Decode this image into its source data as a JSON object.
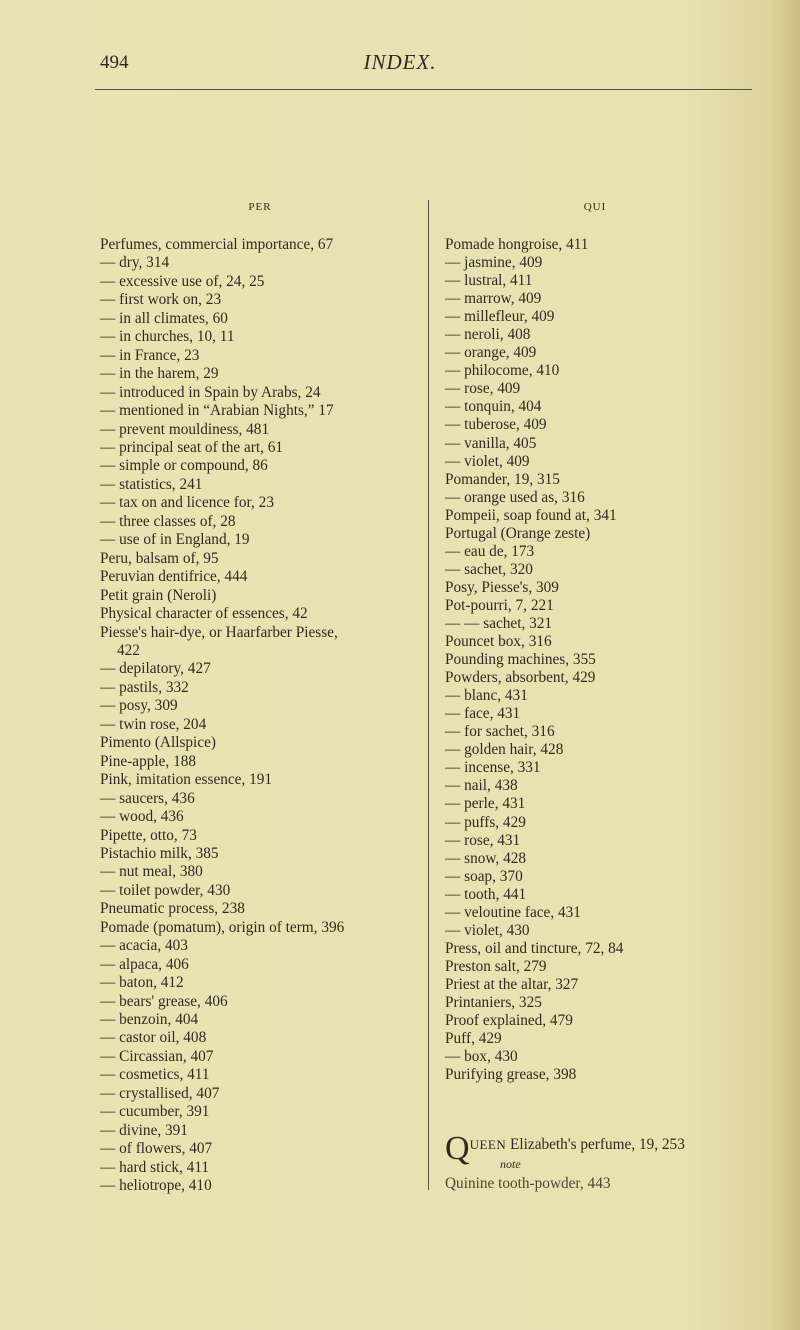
{
  "header": {
    "page_number": "494",
    "title": "INDEX."
  },
  "left_column": {
    "heading": "PER",
    "entries": [
      "Perfumes, commercial importance, 67",
      "— dry, 314",
      "— excessive use of, 24, 25",
      "— first work on, 23",
      "— in all climates, 60",
      "— in churches, 10, 11",
      "— in France, 23",
      "— in the harem, 29",
      "— introduced in Spain by Arabs, 24",
      "— mentioned in “Arabian Nights,” 17",
      "— prevent mouldiness, 481",
      "— principal seat of the art, 61",
      "— simple or compound, 86",
      "— statistics, 241",
      "— tax on and licence for, 23",
      "— three classes of, 28",
      "— use of in England, 19",
      "Peru, balsam of, 95",
      "Peruvian dentifrice, 444",
      "Petit grain (Neroli)",
      "Physical character of essences, 42",
      "Piesse's hair-dye, or Haarfarber Piesse,",
      "422",
      "— depilatory, 427",
      "— pastils, 332",
      "— posy, 309",
      "— twin rose, 204",
      "Pimento (Allspice)",
      "Pine-apple, 188",
      "Pink, imitation essence, 191",
      "— saucers, 436",
      "— wood, 436",
      "Pipette, otto, 73",
      "Pistachio milk, 385",
      "— nut meal, 380",
      "— toilet powder, 430",
      "Pneumatic process, 238",
      "Pomade (pomatum), origin of term, 396",
      "— acacia, 403",
      "— alpaca, 406",
      "— baton, 412",
      "— bears' grease, 406",
      "— benzoin, 404",
      "— castor oil, 408",
      "— Circassian, 407",
      "— cosmetics, 411",
      "— crystallised, 407",
      "— cucumber, 391",
      "— divine, 391",
      "— of flowers, 407",
      "— hard stick, 411",
      "— heliotrope, 410"
    ]
  },
  "right_column": {
    "heading": "QUI",
    "entries": [
      "Pomade hongroise, 411",
      "— jasmine, 409",
      "— lustral, 411",
      "— marrow, 409",
      "— millefleur, 409",
      "— neroli, 408",
      "— orange, 409",
      "— philocome, 410",
      "— rose, 409",
      "— tonquin, 404",
      "— tuberose, 409",
      "— vanilla, 405",
      "— violet, 409",
      "Pomander, 19, 315",
      "— orange used as, 316",
      "Pompeii, soap found at, 341",
      "Portugal (Orange zeste)",
      "— eau de, 173",
      "— sachet, 320",
      "Posy, Piesse's, 309",
      "Pot-pourri, 7, 221",
      "— — sachet, 321",
      "Pouncet box, 316",
      "Pounding machines, 355",
      "Powders, absorbent, 429",
      "— blanc, 431",
      "— face, 431",
      "— for sachet, 316",
      "— golden hair, 428",
      "— incense, 331",
      "— nail, 438",
      "— perle, 431",
      "— puffs, 429",
      "— rose, 431",
      "— snow, 428",
      "— soap, 370",
      "— tooth, 441",
      "— veloutine face, 431",
      "— violet, 430",
      "Press, oil and tincture, 72, 84",
      "Preston salt, 279",
      "Priest at the altar, 327",
      "Printaniers, 325",
      "Proof explained, 479",
      "Puff, 429",
      "— box, 430",
      "Purifying grease, 398"
    ],
    "q_section": {
      "initial": "Q",
      "caps": "UEEN",
      "rest": " Elizabeth's perfume, 19, 253",
      "note": "note",
      "quinine": "Quinine tooth-powder, 443"
    }
  }
}
